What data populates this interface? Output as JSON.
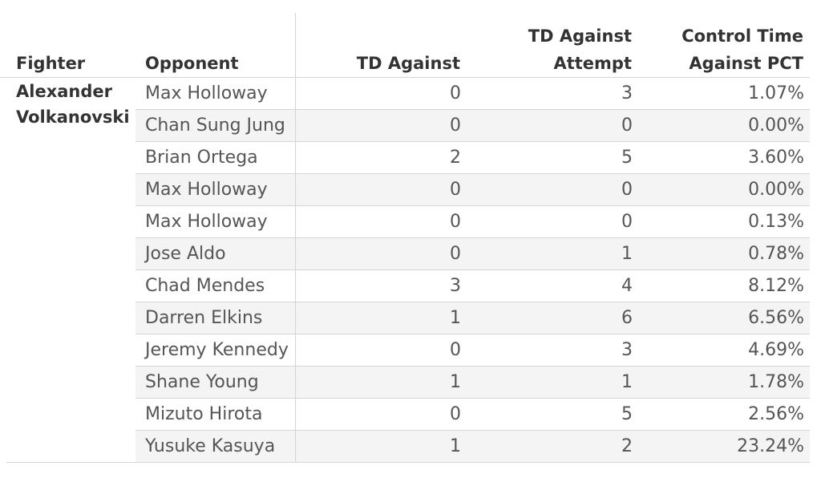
{
  "columns": {
    "fighter": "Fighter",
    "opponent": "Opponent",
    "td_against": "TD Against",
    "td_attempt_line1": "TD Against",
    "td_attempt_line2": "Attempt",
    "ctrl_line1": "Control Time",
    "ctrl_line2": "Against PCT"
  },
  "fighter": {
    "line1": "Alexander",
    "line2": "Volkanovski"
  },
  "rows": [
    {
      "opponent": "Max Holloway",
      "td_against": "0",
      "td_attempt": "3",
      "ctrl_pct": "1.07%"
    },
    {
      "opponent": "Chan Sung Jung",
      "td_against": "0",
      "td_attempt": "0",
      "ctrl_pct": "0.00%"
    },
    {
      "opponent": "Brian Ortega",
      "td_against": "2",
      "td_attempt": "5",
      "ctrl_pct": "3.60%"
    },
    {
      "opponent": "Max Holloway",
      "td_against": "0",
      "td_attempt": "0",
      "ctrl_pct": "0.00%"
    },
    {
      "opponent": "Max Holloway",
      "td_against": "0",
      "td_attempt": "0",
      "ctrl_pct": "0.13%"
    },
    {
      "opponent": "Jose Aldo",
      "td_against": "0",
      "td_attempt": "1",
      "ctrl_pct": "0.78%"
    },
    {
      "opponent": "Chad Mendes",
      "td_against": "3",
      "td_attempt": "4",
      "ctrl_pct": "8.12%"
    },
    {
      "opponent": "Darren Elkins",
      "td_against": "1",
      "td_attempt": "6",
      "ctrl_pct": "6.56%"
    },
    {
      "opponent": "Jeremy Kennedy",
      "td_against": "0",
      "td_attempt": "3",
      "ctrl_pct": "4.69%"
    },
    {
      "opponent": "Shane Young",
      "td_against": "1",
      "td_attempt": "1",
      "ctrl_pct": "1.78%"
    },
    {
      "opponent": "Mizuto Hirota",
      "td_against": "0",
      "td_attempt": "5",
      "ctrl_pct": "2.56%"
    },
    {
      "opponent": "Yusuke Kasuya",
      "td_against": "1",
      "td_attempt": "2",
      "ctrl_pct": "23.24%"
    }
  ],
  "colors": {
    "stripe": "#f4f4f4",
    "gridline": "#d4d4d4",
    "header_text": "#333333",
    "cell_text": "#555555"
  }
}
